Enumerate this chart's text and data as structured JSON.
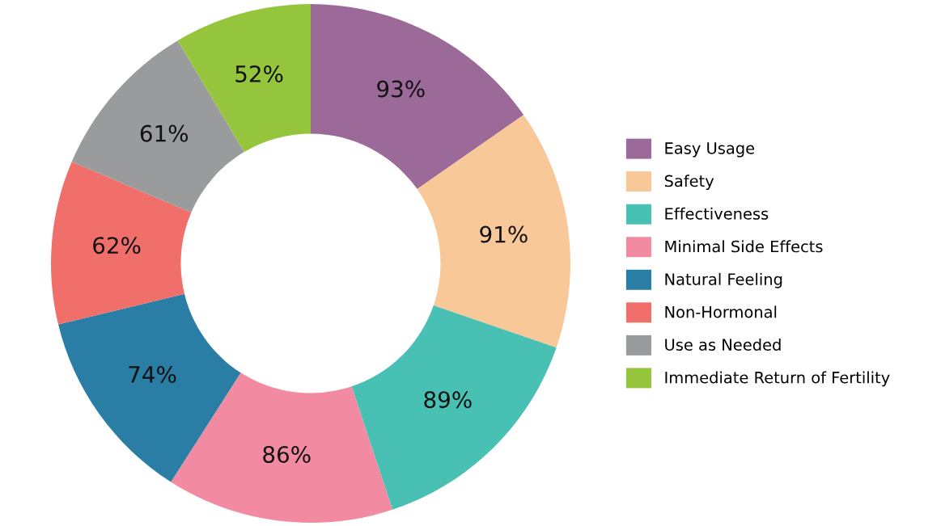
{
  "chart_data": {
    "type": "donut",
    "categories": [
      "Easy Usage",
      "Safety",
      "Effectiveness",
      "Minimal Side Effects",
      "Natural Feeling",
      "Non-Hormonal",
      "Use as Needed",
      "Immediate Return of Fertility"
    ],
    "values": [
      93,
      91,
      89,
      86,
      74,
      62,
      61,
      52
    ],
    "colors": [
      "#9b6a98",
      "#f9c899",
      "#48c0b3",
      "#f28ba1",
      "#2a7ea6",
      "#f06f6a",
      "#999b9c",
      "#95c53d"
    ],
    "value_labels": [
      "93%",
      "91%",
      "89%",
      "86%",
      "74%",
      "62%",
      "61%",
      "52%"
    ],
    "legend": "right"
  }
}
